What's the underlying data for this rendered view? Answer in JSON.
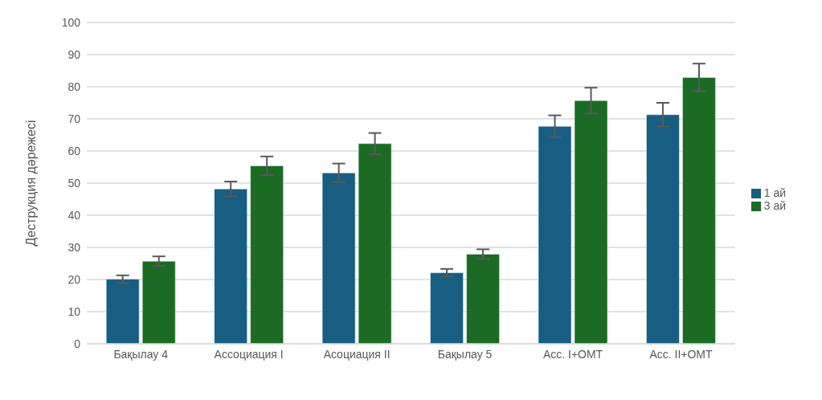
{
  "chart_data": {
    "type": "bar",
    "ylabel": "Деструкция дәрежесі",
    "categories": [
      "Бақылау 4",
      "Ассоциация I",
      "Асоциация II",
      "Бақылау 5",
      "Асс. I+ОМТ",
      "Асс. II+ОМТ"
    ],
    "series": [
      {
        "name": "1 ай",
        "color": "#175e82",
        "values": [
          20.1,
          48.2,
          53.2,
          22.1,
          67.7,
          71.3
        ],
        "errors": [
          1.2,
          2.3,
          2.9,
          1.2,
          3.4,
          3.7
        ]
      },
      {
        "name": "3 ай",
        "color": "#1b6b24",
        "values": [
          25.7,
          55.4,
          62.3,
          27.9,
          75.7,
          82.9
        ],
        "errors": [
          1.5,
          2.9,
          3.3,
          1.5,
          4.0,
          4.3
        ]
      }
    ],
    "ylim": [
      0,
      100
    ],
    "yticks": [
      0,
      10,
      20,
      30,
      40,
      50,
      60,
      70,
      80,
      90,
      100
    ],
    "grid": "y",
    "legend": "right"
  }
}
